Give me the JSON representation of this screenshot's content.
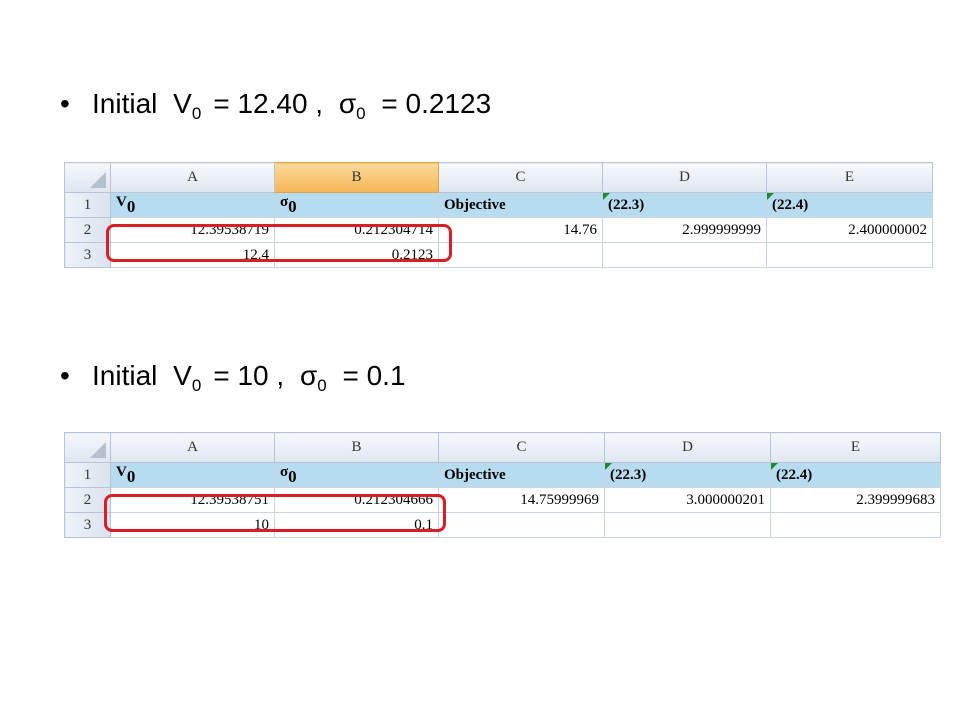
{
  "bullets": [
    {
      "prefix": "Initial",
      "v_sym": "V",
      "v_sub": "0",
      "v_val": "= 12.40 ,",
      "s_sym": "σ",
      "s_sub": "0",
      "s_val": "= 0.2123"
    },
    {
      "prefix": "Initial",
      "v_sym": "V",
      "v_sub": "0",
      "v_val": "= 10 ,",
      "s_sym": "σ",
      "s_sub": "0",
      "s_val": "= 0.1"
    }
  ],
  "bullet_char": "•",
  "colors": {
    "highlight": "#d91f26",
    "header_fill": "#b7dcef",
    "selected_col": "#f5b656"
  },
  "sheet1": {
    "columns": [
      "A",
      "B",
      "C",
      "D",
      "E"
    ],
    "rows": [
      "1",
      "2",
      "3"
    ],
    "header": {
      "a": "V",
      "a_sub": "0",
      "b": "σ",
      "b_sub": "0",
      "c": "Objective",
      "d": "(22.3)",
      "e": "(22.4)"
    },
    "row2": [
      "12.39538719",
      "0.212304714",
      "14.76",
      "2.999999999",
      "2.400000002"
    ],
    "row3": [
      "12.4",
      "0.2123",
      "",
      "",
      ""
    ]
  },
  "sheet2": {
    "columns": [
      "A",
      "B",
      "C",
      "D",
      "E"
    ],
    "rows": [
      "1",
      "2",
      "3"
    ],
    "header": {
      "a": "V",
      "a_sub": "0",
      "b": "σ",
      "b_sub": "0",
      "c": "Objective",
      "d": "(22.3)",
      "e": "(22.4)"
    },
    "row2": [
      "12.39538751",
      "0.212304666",
      "14.75999969",
      "3.000000201",
      "2.399999683"
    ],
    "row3": [
      "10",
      "0.1",
      "",
      "",
      ""
    ]
  }
}
